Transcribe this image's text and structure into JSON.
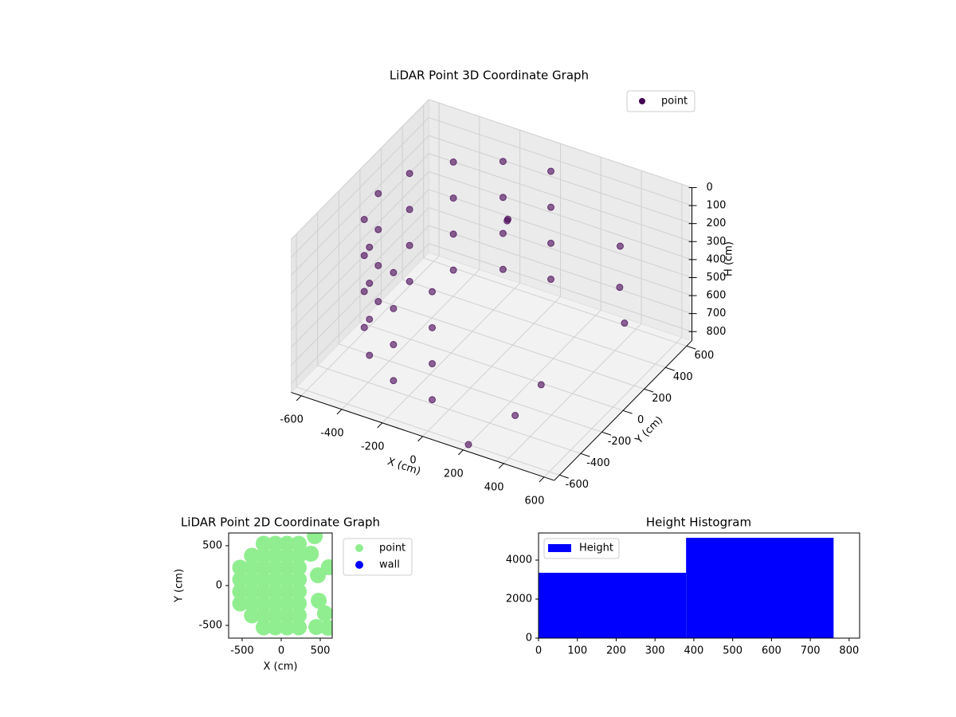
{
  "chart_data": [
    {
      "type": "scatter3d",
      "title": "LiDAR Point 3D Coordinate Graph",
      "xlabel": "X (cm)",
      "ylabel": "Y (cm)",
      "zlabel": "H (cm)",
      "xlim": [
        -650,
        650
      ],
      "ylim": [
        -650,
        650
      ],
      "zlim": [
        0,
        850
      ],
      "z_inverted": true,
      "xticks": [
        -600,
        -400,
        -200,
        0,
        200,
        400,
        600
      ],
      "yticks": [
        -600,
        -400,
        -200,
        0,
        200,
        400,
        600
      ],
      "zticks": [
        0,
        100,
        200,
        300,
        400,
        500,
        600,
        700,
        800
      ],
      "legend": "upper right",
      "grid": true,
      "series": [
        {
          "name": "point",
          "color": "#440154",
          "x": [
            0,
            -214,
            -396,
            -517,
            -560,
            -517,
            -396,
            -214,
            0,
            0,
            -214,
            -396,
            -517,
            -560,
            -517,
            -396,
            -214,
            0,
            0,
            -214,
            -396,
            -517,
            -560,
            -517,
            -396,
            -214,
            0,
            0,
            -214,
            -396,
            -517,
            -560,
            -517,
            -396,
            -214,
            0,
            400,
            450,
            500,
            350,
            300,
            200,
            -50,
            -80
          ],
          "y": [
            560,
            517,
            396,
            214,
            0,
            -214,
            -396,
            -517,
            -560,
            560,
            517,
            396,
            214,
            0,
            -214,
            -396,
            -517,
            -560,
            560,
            517,
            396,
            214,
            0,
            -214,
            -396,
            -517,
            -560,
            560,
            517,
            396,
            214,
            0,
            -214,
            -396,
            -517,
            -560,
            450,
            350,
            300,
            -200,
            -350,
            -600,
            250,
            300
          ],
          "h": [
            100,
            100,
            100,
            100,
            100,
            100,
            100,
            100,
            100,
            300,
            300,
            300,
            300,
            300,
            300,
            300,
            300,
            300,
            500,
            500,
            500,
            500,
            500,
            500,
            500,
            500,
            500,
            700,
            700,
            700,
            700,
            700,
            700,
            700,
            700,
            700,
            300,
            450,
            600,
            700,
            800,
            850,
            200,
            250
          ]
        }
      ]
    },
    {
      "type": "scatter",
      "title": "LiDAR Point 2D Coordinate Graph",
      "xlabel": "X (cm)",
      "ylabel": "Y (cm)",
      "xlim": [
        -673,
        653
      ],
      "ylim": [
        -660,
        660
      ],
      "xticks": [
        -500,
        0,
        500
      ],
      "yticks": [
        -500,
        0,
        500
      ],
      "legend": "outside right",
      "series": [
        {
          "name": "point",
          "color": "#90ee90",
          "x": [
            -525,
            -525,
            -525,
            -525,
            -375,
            -375,
            -375,
            -375,
            -375,
            -375,
            -225,
            -225,
            -225,
            -225,
            -225,
            -225,
            -225,
            -225,
            -75,
            -75,
            -75,
            -75,
            -75,
            -75,
            -75,
            -75,
            75,
            75,
            75,
            75,
            75,
            75,
            75,
            75,
            225,
            225,
            225,
            225,
            225,
            225,
            225,
            225,
            430,
            470,
            480,
            560,
            600,
            450,
            610,
            380
          ],
          "y": [
            -225,
            -75,
            75,
            225,
            -375,
            -225,
            -75,
            75,
            225,
            375,
            -525,
            -375,
            -225,
            -75,
            75,
            225,
            375,
            525,
            -525,
            -375,
            -225,
            -75,
            75,
            225,
            375,
            525,
            -525,
            -375,
            -225,
            -75,
            75,
            225,
            375,
            525,
            -525,
            -375,
            -225,
            -75,
            75,
            225,
            375,
            525,
            620,
            130,
            -190,
            -350,
            -530,
            -520,
            230,
            400
          ]
        },
        {
          "name": "wall",
          "color": "#0000ff",
          "x": [],
          "y": []
        }
      ]
    },
    {
      "type": "histogram",
      "title": "Height Histogram",
      "xlim": [
        0,
        827
      ],
      "ylim": [
        0,
        5390
      ],
      "xticks": [
        0,
        100,
        200,
        300,
        400,
        500,
        600,
        700,
        800
      ],
      "yticks": [
        0,
        2000,
        4000
      ],
      "legend": "upper left",
      "bins": [
        0,
        380,
        760
      ],
      "series": [
        {
          "name": "Height",
          "color": "#0000ff",
          "values": [
            3350,
            5140
          ]
        }
      ]
    }
  ]
}
